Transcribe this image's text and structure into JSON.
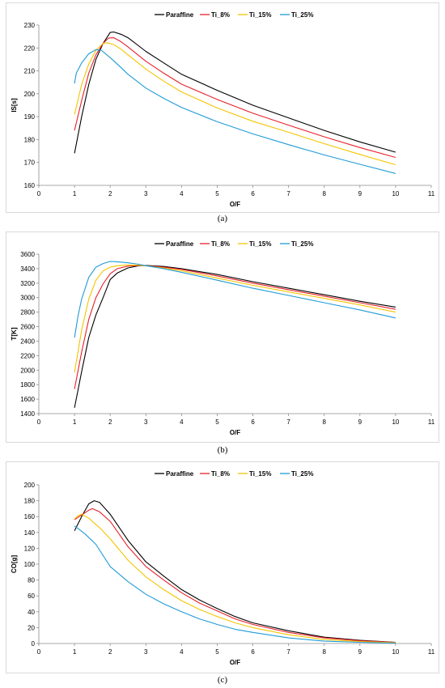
{
  "colors": {
    "Paraffine": "#000000",
    "Ti_8%": "#e8202a",
    "Ti_15%": "#f5c400",
    "Ti_25%": "#1f9bd7"
  },
  "chart_data": [
    {
      "type": "line",
      "caption": "(a)",
      "xlabel": "O/F",
      "ylabel": "IS[s]",
      "xlim": [
        0,
        11
      ],
      "ylim": [
        160,
        230
      ],
      "xticks": [
        0,
        1,
        2,
        3,
        4,
        5,
        6,
        7,
        8,
        9,
        10,
        11
      ],
      "yticks": [
        160,
        170,
        180,
        190,
        200,
        210,
        220,
        230
      ],
      "legend": "top-center",
      "series": [
        {
          "name": "Paraffine",
          "x": [
            1,
            1.2,
            1.4,
            1.6,
            1.8,
            2.0,
            2.1,
            2.3,
            2.5,
            3,
            3.5,
            4,
            5,
            6,
            7,
            8,
            9,
            10
          ],
          "y": [
            174,
            190,
            204,
            215,
            222,
            226.8,
            227,
            226,
            224.5,
            218.5,
            213.5,
            208.5,
            201.5,
            195,
            189.5,
            184,
            179,
            174.5
          ]
        },
        {
          "name": "Ti_8%",
          "x": [
            1,
            1.2,
            1.4,
            1.6,
            1.8,
            1.95,
            2.1,
            2.3,
            2.5,
            3,
            3.5,
            4,
            5,
            6,
            7,
            8,
            9,
            10
          ],
          "y": [
            184,
            197,
            209,
            217,
            222,
            224.3,
            224.5,
            222.8,
            220.5,
            214.2,
            209,
            204.2,
            197.5,
            191.5,
            186.3,
            181.2,
            176.5,
            172.2
          ]
        },
        {
          "name": "Ti_15%",
          "x": [
            1,
            1.2,
            1.4,
            1.6,
            1.8,
            1.9,
            2.1,
            2.3,
            2.5,
            3,
            3.5,
            4,
            5,
            6,
            7,
            8,
            9,
            10
          ],
          "y": [
            191,
            204,
            213,
            219,
            222,
            222.3,
            221.5,
            219.5,
            217,
            210.8,
            205.5,
            200.8,
            193.8,
            188,
            183.2,
            178.2,
            173.5,
            169
          ]
        },
        {
          "name": "Ti_25%",
          "x": [
            1,
            1.05,
            1.2,
            1.4,
            1.6,
            1.75,
            2.0,
            2.3,
            2.5,
            3,
            3.5,
            4,
            5,
            6,
            7,
            8,
            9,
            10
          ],
          "y": [
            204.5,
            209,
            213.5,
            217.5,
            219.3,
            219,
            215.8,
            211.5,
            208.5,
            202.5,
            198,
            194,
            187.8,
            182.5,
            177.8,
            173.3,
            169.2,
            165.2
          ]
        }
      ]
    },
    {
      "type": "line",
      "caption": "(b)",
      "xlabel": "O/F",
      "ylabel": "T[K]",
      "xlim": [
        0,
        11
      ],
      "ylim": [
        1400,
        3600
      ],
      "xticks": [
        0,
        1,
        2,
        3,
        4,
        5,
        6,
        7,
        8,
        9,
        10,
        11
      ],
      "yticks": [
        1400,
        1600,
        1800,
        2000,
        2200,
        2400,
        2600,
        2800,
        3000,
        3200,
        3400,
        3600
      ],
      "legend": "top-center",
      "series": [
        {
          "name": "Paraffine",
          "x": [
            1,
            1.2,
            1.4,
            1.6,
            1.8,
            2,
            2.2,
            2.5,
            2.8,
            3,
            3.5,
            4,
            5,
            6,
            7,
            8,
            9,
            10
          ],
          "y": [
            1480,
            1980,
            2450,
            2760,
            3000,
            3250,
            3340,
            3410,
            3440,
            3445,
            3430,
            3400,
            3320,
            3220,
            3130,
            3040,
            2950,
            2870
          ]
        },
        {
          "name": "Ti_8%",
          "x": [
            1,
            1.2,
            1.4,
            1.6,
            1.8,
            2,
            2.2,
            2.5,
            2.8,
            3,
            3.5,
            4,
            5,
            6,
            7,
            8,
            9,
            10
          ],
          "y": [
            1740,
            2250,
            2700,
            3000,
            3190,
            3330,
            3400,
            3435,
            3445,
            3440,
            3420,
            3390,
            3300,
            3200,
            3110,
            3020,
            2930,
            2840
          ]
        },
        {
          "name": "Ti_15%",
          "x": [
            1,
            1.2,
            1.4,
            1.6,
            1.8,
            2,
            2.2,
            2.5,
            2.8,
            3,
            3.5,
            4,
            5,
            6,
            7,
            8,
            9,
            10
          ],
          "y": [
            1970,
            2550,
            2980,
            3240,
            3370,
            3420,
            3440,
            3450,
            3448,
            3440,
            3410,
            3370,
            3270,
            3170,
            3080,
            2990,
            2900,
            2800
          ]
        },
        {
          "name": "Ti_25%",
          "x": [
            1,
            1.1,
            1.2,
            1.4,
            1.6,
            1.8,
            2,
            2.2,
            2.5,
            2.8,
            3,
            3.5,
            4,
            5,
            6,
            7,
            8,
            9,
            10
          ],
          "y": [
            2450,
            2750,
            2980,
            3280,
            3420,
            3470,
            3500,
            3495,
            3480,
            3460,
            3440,
            3400,
            3350,
            3240,
            3130,
            3030,
            2930,
            2830,
            2720
          ]
        }
      ]
    },
    {
      "type": "line",
      "caption": "(c)",
      "xlabel": "O/F",
      "ylabel": "CO[g]",
      "xlim": [
        0,
        11
      ],
      "ylim": [
        0,
        200
      ],
      "xticks": [
        0,
        1,
        2,
        3,
        4,
        5,
        6,
        7,
        8,
        9,
        10,
        11
      ],
      "yticks": [
        0,
        20,
        40,
        60,
        80,
        100,
        120,
        140,
        160,
        180,
        200
      ],
      "legend": "top-center",
      "series": [
        {
          "name": "Paraffine",
          "x": [
            1,
            1.2,
            1.4,
            1.55,
            1.7,
            2,
            2.5,
            3,
            3.5,
            4,
            4.5,
            5,
            5.5,
            6,
            7,
            8,
            9,
            10
          ],
          "y": [
            142,
            160,
            176,
            180,
            178,
            163,
            130,
            103,
            85,
            68,
            55,
            44,
            34,
            26,
            16,
            8,
            4,
            1.5
          ]
        },
        {
          "name": "Ti_8%",
          "x": [
            1,
            1.2,
            1.4,
            1.5,
            1.7,
            2,
            2.5,
            3,
            3.5,
            4,
            4.5,
            5,
            5.5,
            6,
            7,
            8,
            9,
            10
          ],
          "y": [
            156,
            162,
            168,
            170,
            166,
            154,
            122,
            97,
            80,
            64,
            51,
            41,
            31,
            24,
            14,
            7,
            3.5,
            1.3
          ]
        },
        {
          "name": "Ti_15%",
          "x": [
            1,
            1.1,
            1.2,
            1.4,
            1.7,
            2,
            2.5,
            3,
            3.5,
            4,
            4.5,
            5,
            5.5,
            6,
            7,
            8,
            9,
            10
          ],
          "y": [
            157,
            161,
            163,
            158,
            146,
            132,
            105,
            84,
            68,
            54,
            43,
            34,
            26,
            20,
            11,
            5,
            2.5,
            1
          ]
        },
        {
          "name": "Ti_25%",
          "x": [
            1,
            1.1,
            1.3,
            1.6,
            2,
            2.5,
            3,
            3.5,
            4,
            4.5,
            5,
            5.5,
            6,
            7,
            8,
            9,
            10
          ],
          "y": [
            148,
            145,
            138,
            125,
            97,
            78,
            62,
            50,
            40,
            31,
            24,
            18,
            14,
            7,
            3,
            1.5,
            0.5
          ]
        }
      ]
    }
  ]
}
